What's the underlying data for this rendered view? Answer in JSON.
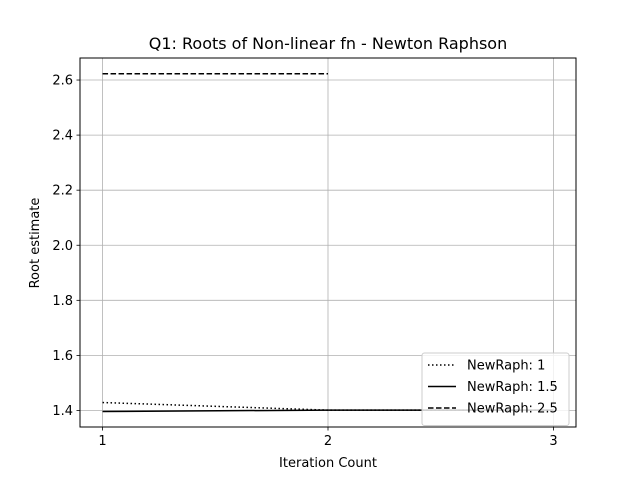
{
  "chart_data": {
    "type": "line",
    "title": "Q1: Roots of Non-linear fn - Newton Raphson",
    "xlabel": "Iteration Count",
    "ylabel": "Root estimate",
    "xlim": [
      0.9,
      3.1
    ],
    "ylim": [
      1.34,
      2.68
    ],
    "xticks": [
      1,
      2,
      3
    ],
    "yticks": [
      1.4,
      1.6,
      1.8,
      2.0,
      2.2,
      2.4,
      2.6
    ],
    "xtick_labels": [
      "1",
      "2",
      "3"
    ],
    "ytick_labels": [
      "1.4",
      "1.6",
      "1.8",
      "2.0",
      "2.2",
      "2.4",
      "2.6"
    ],
    "grid": true,
    "legend_position": "bottom-right",
    "series": [
      {
        "name": "NewRaph: 1",
        "line_style": "dotted",
        "x": [
          1,
          2,
          3
        ],
        "y": [
          1.4289,
          1.4013,
          1.4013
        ]
      },
      {
        "name": "NewRaph: 1.5",
        "line_style": "solid",
        "x": [
          1,
          2,
          3
        ],
        "y": [
          1.3964,
          1.4013,
          1.4013
        ]
      },
      {
        "name": "NewRaph: 2.5",
        "line_style": "dashed",
        "x": [
          1,
          2
        ],
        "y": [
          2.6226,
          2.6226
        ]
      }
    ]
  }
}
